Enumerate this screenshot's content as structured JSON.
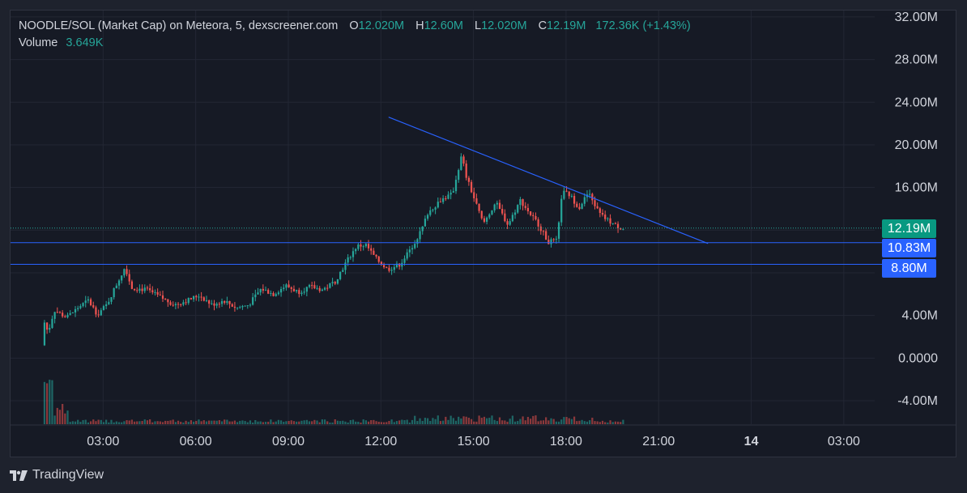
{
  "legend": {
    "title": "NOODLE/SOL (Market Cap) on Meteora, 5, dexscreener.com",
    "o_key": "O",
    "o_val": "12.020M",
    "h_key": "H",
    "h_val": "12.60M",
    "l_key": "L",
    "l_val": "12.020M",
    "c_key": "C",
    "c_val": "12.19M",
    "change": "172.36K (+1.43%)",
    "volume_label": "Volume",
    "volume_val": "3.649K"
  },
  "price_badges": {
    "current": "12.19M",
    "level_1": "10.83M",
    "level_2": "8.80M"
  },
  "brand": {
    "name": "TradingView"
  },
  "colors": {
    "up": "#26a69a",
    "down": "#ef5350",
    "level_line": "#2962ff",
    "trend_line": "#2962ff",
    "badge_current": "#089981",
    "badge_level": "#2962ff"
  },
  "chart_data": {
    "type": "candlestick",
    "y_ticks": [
      "32.00M",
      "28.00M",
      "24.00M",
      "20.00M",
      "16.00M",
      "4.00M",
      "0.0000",
      "-4.00M"
    ],
    "y_tick_values": [
      32,
      28,
      24,
      20,
      16,
      4,
      0,
      -4
    ],
    "x_ticks": [
      "03:00",
      "06:00",
      "09:00",
      "12:00",
      "15:00",
      "18:00",
      "21:00",
      "14",
      "03:00"
    ],
    "x_tick_hours": [
      3,
      6,
      9,
      12,
      15,
      18,
      21,
      24,
      27
    ],
    "ylim": [
      -6.2,
      32.6
    ],
    "xlim_hours": [
      0.0,
      28.0
    ],
    "current_price": 12.19,
    "horizontal_levels": [
      10.83,
      8.8
    ],
    "trend_line": {
      "start": [
        12.25,
        22.6
      ],
      "end": [
        22.6,
        10.75
      ]
    },
    "path_anchors": [
      [
        1.1,
        1.2
      ],
      [
        1.15,
        3.6
      ],
      [
        1.3,
        2.4
      ],
      [
        1.5,
        4.5
      ],
      [
        1.9,
        3.8
      ],
      [
        2.3,
        4.8
      ],
      [
        2.6,
        5.4
      ],
      [
        2.9,
        4.1
      ],
      [
        3.2,
        5.0
      ],
      [
        3.6,
        7.4
      ],
      [
        3.8,
        8.6
      ],
      [
        4.0,
        6.6
      ],
      [
        4.5,
        6.4
      ],
      [
        5.0,
        5.6
      ],
      [
        5.4,
        5.0
      ],
      [
        5.8,
        5.4
      ],
      [
        6.2,
        5.9
      ],
      [
        6.6,
        5.0
      ],
      [
        7.0,
        5.4
      ],
      [
        7.4,
        4.7
      ],
      [
        7.8,
        5.0
      ],
      [
        8.2,
        6.5
      ],
      [
        8.6,
        6.0
      ],
      [
        9.0,
        6.8
      ],
      [
        9.4,
        6.2
      ],
      [
        9.8,
        6.7
      ],
      [
        10.2,
        6.4
      ],
      [
        10.6,
        7.2
      ],
      [
        11.0,
        9.2
      ],
      [
        11.3,
        10.5
      ],
      [
        11.6,
        10.6
      ],
      [
        11.9,
        9.4
      ],
      [
        12.3,
        8.3
      ],
      [
        12.7,
        8.8
      ],
      [
        13.0,
        10.0
      ],
      [
        13.2,
        11.0
      ],
      [
        13.4,
        12.0
      ],
      [
        13.6,
        13.6
      ],
      [
        14.0,
        14.8
      ],
      [
        14.4,
        15.4
      ],
      [
        14.7,
        19.0
      ],
      [
        14.85,
        17.0
      ],
      [
        15.0,
        15.8
      ],
      [
        15.4,
        12.6
      ],
      [
        15.8,
        14.6
      ],
      [
        16.2,
        12.5
      ],
      [
        16.6,
        14.8
      ],
      [
        16.9,
        13.6
      ],
      [
        17.2,
        12.5
      ],
      [
        17.5,
        10.9
      ],
      [
        17.8,
        11.0
      ],
      [
        17.95,
        15.6
      ],
      [
        18.2,
        15.3
      ],
      [
        18.5,
        14.1
      ],
      [
        18.8,
        15.5
      ],
      [
        19.2,
        13.4
      ],
      [
        19.4,
        13.0
      ],
      [
        19.7,
        12.4
      ],
      [
        19.9,
        12.2
      ]
    ],
    "volume_scale_note": "volume bars in separate pane"
  }
}
